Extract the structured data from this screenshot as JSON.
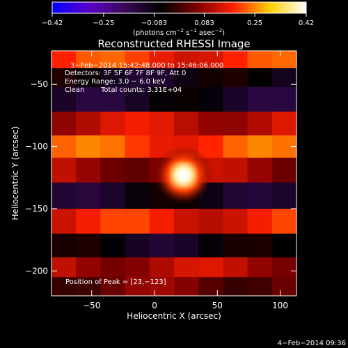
{
  "chart_data": {
    "type": "heatmap",
    "title": "Reconstructed RHESSI Image",
    "xlabel": "Heliocentric X (arcsec)",
    "ylabel": "Heliocentric Y (arcsec)",
    "xlim": [
      -82,
      113
    ],
    "ylim": [
      -220,
      -23
    ],
    "xticks": [
      -50,
      0,
      50,
      100
    ],
    "xtick_labels": [
      "−50",
      "0",
      "50",
      "100"
    ],
    "yticks": [
      -50,
      -100,
      -150,
      -200
    ],
    "ytick_labels": [
      "−50",
      "−100",
      "−150",
      "−200"
    ],
    "colorbar": {
      "range": [
        -0.42,
        0.42
      ],
      "ticks": [
        -0.42,
        -0.25,
        -0.083,
        0.083,
        0.25,
        0.42
      ],
      "tick_labels": [
        "−0.42",
        "−0.25",
        "−0.083",
        "0.083",
        "0.25",
        "0.42"
      ],
      "units_prefix": "(photons cm",
      "units_exp1": "−2",
      "units_mid": " s",
      "units_exp2": "−1",
      "units_mid2": " asec",
      "units_suffix": ")",
      "colors": [
        "#0000ff",
        "#5a00c8",
        "#3a0a5a",
        "#000000",
        "#800000",
        "#ff2000",
        "#ffd000",
        "#ffffff"
      ]
    },
    "annotations": [
      "3−Feb−2014 15:42:48.000 to 15:46:06.000",
      "Detectors: 3F 5F 6F 7F 8F 9F, Att 0",
      "Energy Range: 3.0 − 6.0 keV",
      "Clean",
      "Total counts: 3.31E+04"
    ],
    "peak_label": "Position of Peak = [23,−123]",
    "peak": {
      "x": 23,
      "y": -123,
      "value": 0.42
    },
    "image_bands": [
      {
        "y": -32,
        "value": 0.18
      },
      {
        "y": -42,
        "value": -0.08
      },
      {
        "y": -62,
        "value": -0.1
      },
      {
        "y": -82,
        "value": 0.12
      },
      {
        "y": -100,
        "value": 0.2
      },
      {
        "y": -118,
        "value": 0.08
      },
      {
        "y": -140,
        "value": -0.09
      },
      {
        "y": -160,
        "value": 0.16
      },
      {
        "y": -180,
        "value": -0.08
      },
      {
        "y": -198,
        "value": 0.1
      },
      {
        "y": -212,
        "value": 0.04
      }
    ]
  },
  "footer": {
    "timestamp": "4−Feb−2014 09:36"
  }
}
